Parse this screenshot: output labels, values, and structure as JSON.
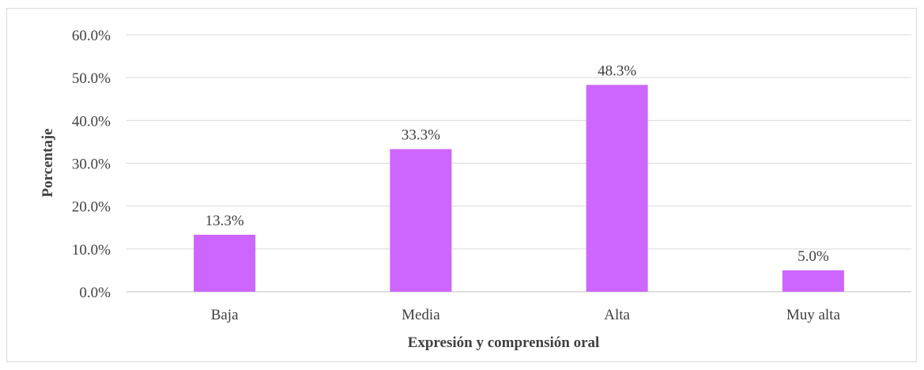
{
  "chart_data": {
    "type": "bar",
    "categories": [
      "Baja",
      "Media",
      "Alta",
      "Muy alta"
    ],
    "values": [
      13.3,
      33.3,
      48.3,
      5.0
    ],
    "data_labels": [
      "13.3%",
      "33.3%",
      "48.3%",
      "5.0%"
    ],
    "title": "",
    "xlabel": "Expresión y comprensión oral",
    "ylabel": "Porcentaje",
    "ylim": [
      0,
      60
    ],
    "yticks": [
      0,
      10,
      20,
      30,
      40,
      50,
      60
    ],
    "ytick_labels": [
      "0.0%",
      "10.0%",
      "20.0%",
      "30.0%",
      "40.0%",
      "50.0%",
      "60.0%"
    ],
    "grid": true,
    "legend": "none",
    "colors": {
      "bar": "#cc66ff",
      "grid": "#d9d9d9",
      "axis": "#bfbfbf",
      "text": "#404040"
    }
  }
}
